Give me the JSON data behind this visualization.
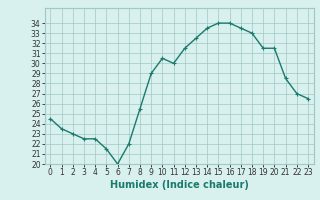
{
  "x": [
    0,
    1,
    2,
    3,
    4,
    5,
    6,
    7,
    8,
    9,
    10,
    11,
    12,
    13,
    14,
    15,
    16,
    17,
    18,
    19,
    20,
    21,
    22,
    23
  ],
  "y": [
    24.5,
    23.5,
    23.0,
    22.5,
    22.5,
    21.5,
    20.0,
    22.0,
    25.5,
    29.0,
    30.5,
    30.0,
    31.5,
    32.5,
    33.5,
    34.0,
    34.0,
    33.5,
    33.0,
    31.5,
    31.5,
    28.5,
    27.0,
    26.5
  ],
  "xlabel": "Humidex (Indice chaleur)",
  "ylabel": "",
  "title": "",
  "xlim": [
    -0.5,
    23.5
  ],
  "ylim": [
    20,
    35
  ],
  "yticks": [
    20,
    21,
    22,
    23,
    24,
    25,
    26,
    27,
    28,
    29,
    30,
    31,
    32,
    33,
    34
  ],
  "xticks": [
    0,
    1,
    2,
    3,
    4,
    5,
    6,
    7,
    8,
    9,
    10,
    11,
    12,
    13,
    14,
    15,
    16,
    17,
    18,
    19,
    20,
    21,
    22,
    23
  ],
  "line_color": "#1a7a6e",
  "marker": "+",
  "marker_size": 3,
  "line_width": 1.0,
  "bg_color": "#d8f0ee",
  "grid_color": "#a0c8c4",
  "tick_label_fontsize": 5.5,
  "xlabel_fontsize": 7.0
}
